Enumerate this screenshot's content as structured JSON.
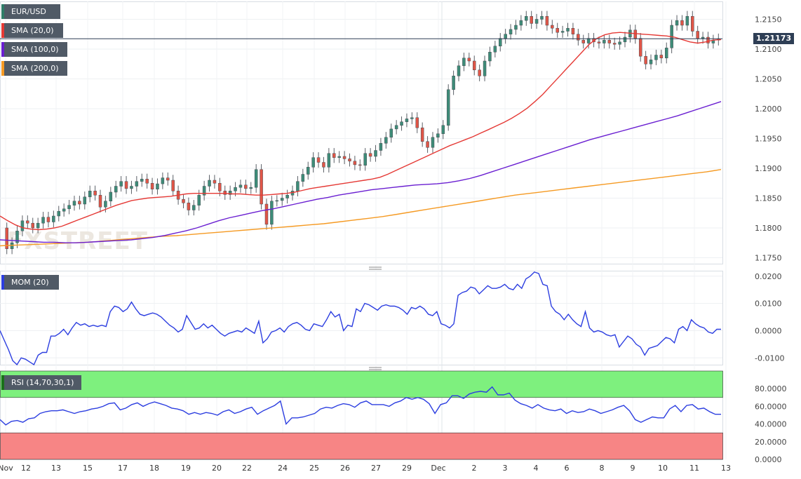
{
  "symbol": "EUR/USD",
  "price_label": "1.21173",
  "legend": {
    "main": [
      {
        "label": "EUR/USD",
        "color": "#2e7d68"
      },
      {
        "label": "SMA (20,0)",
        "color": "#e53935"
      },
      {
        "label": "SMA (100,0)",
        "color": "#6a1fd1"
      },
      {
        "label": "SMA (200,0)",
        "color": "#f59a23"
      }
    ],
    "mom": {
      "label": "MOM (20)",
      "color": "#2c3ee0"
    },
    "rsi": {
      "label": "RSI (14,70,30,1)",
      "color": "#1b6f1b"
    }
  },
  "watermark": "FXSTREET",
  "colors": {
    "up": "#3d8c78",
    "down": "#e05547",
    "sma20": "#e53935",
    "sma100": "#6a1fd1",
    "sma200": "#f59a23",
    "mom": "#2c3ee0",
    "rsi": "#2c3ee0",
    "rsi_overbought": "#7ef07e",
    "rsi_oversold": "#f78585"
  },
  "chart_data": [
    {
      "type": "candlestick",
      "title": "EUR/USD",
      "ylim": [
        1.174,
        1.218
      ],
      "y_ticks": [
        "1.2150",
        "1.2100",
        "1.2050",
        "1.2000",
        "1.1950",
        "1.1900",
        "1.1850",
        "1.1800",
        "1.1750"
      ],
      "x_ticks": [
        "Nov",
        "12",
        "13",
        "15",
        "17",
        "18",
        "19",
        "20",
        "22",
        "24",
        "25",
        "26",
        "27",
        "29",
        "Dec",
        "2",
        "3",
        "4",
        "6",
        "8",
        "9",
        "10",
        "11",
        "13"
      ],
      "current_price": 1.21173,
      "candles": {
        "open": [
          1.18,
          1.1765,
          1.1775,
          1.1795,
          1.1812,
          1.1808,
          1.18,
          1.1808,
          1.1818,
          1.181,
          1.182,
          1.1828,
          1.1832,
          1.1838,
          1.1845,
          1.184,
          1.1852,
          1.1862,
          1.1855,
          1.1835,
          1.1845,
          1.186,
          1.187,
          1.1878,
          1.1866,
          1.187,
          1.1878,
          1.1882,
          1.1875,
          1.1865,
          1.1874,
          1.1884,
          1.188,
          1.1862,
          1.1848,
          1.1842,
          1.183,
          1.1838,
          1.1855,
          1.187,
          1.188,
          1.1875,
          1.1862,
          1.1856,
          1.1862,
          1.1868,
          1.1872,
          1.1866,
          1.1868,
          1.1898,
          1.184,
          1.1806,
          1.1845,
          1.1846,
          1.185,
          1.1855,
          1.1862,
          1.1878,
          1.189,
          1.1902,
          1.1918,
          1.191,
          1.1902,
          1.1925,
          1.1918,
          1.192,
          1.1916,
          1.1912,
          1.1906,
          1.1905,
          1.1925,
          1.192,
          1.193,
          1.1942,
          1.1952,
          1.1966,
          1.1972,
          1.1978,
          1.1983,
          1.1985,
          1.1968,
          1.1945,
          1.1935,
          1.1952,
          1.1958,
          1.1972,
          1.2032,
          1.2055,
          1.2072,
          1.2085,
          1.208,
          1.2065,
          1.2055,
          1.208,
          1.2095,
          1.2105,
          1.2118,
          1.2125,
          1.2133,
          1.214,
          1.2148,
          1.2155,
          1.2143,
          1.215,
          1.2155,
          1.214,
          1.2135,
          1.2128,
          1.213,
          1.2135,
          1.2125,
          1.2115,
          1.211,
          1.2118,
          1.2112,
          1.211,
          1.2115,
          1.211,
          1.2108,
          1.2112,
          1.212,
          1.2132,
          1.2118,
          1.2088,
          1.2075,
          1.2082,
          1.209,
          1.2085,
          1.2102,
          1.214,
          1.2148,
          1.214,
          1.2155,
          1.213,
          1.2118,
          1.212,
          1.211,
          1.2115
        ],
        "close": [
          1.1765,
          1.1775,
          1.1795,
          1.1812,
          1.1808,
          1.18,
          1.1808,
          1.1818,
          1.181,
          1.182,
          1.1828,
          1.1832,
          1.1838,
          1.1845,
          1.184,
          1.1852,
          1.1862,
          1.1855,
          1.1835,
          1.1845,
          1.186,
          1.187,
          1.1878,
          1.1866,
          1.187,
          1.1878,
          1.1882,
          1.1875,
          1.1865,
          1.1874,
          1.1884,
          1.188,
          1.1862,
          1.1848,
          1.1842,
          1.183,
          1.1838,
          1.1855,
          1.187,
          1.188,
          1.1875,
          1.1862,
          1.1856,
          1.1862,
          1.1868,
          1.1872,
          1.1866,
          1.1868,
          1.1898,
          1.184,
          1.1806,
          1.1845,
          1.1846,
          1.185,
          1.1855,
          1.1862,
          1.1878,
          1.189,
          1.1902,
          1.1918,
          1.191,
          1.1902,
          1.1925,
          1.1918,
          1.192,
          1.1916,
          1.1912,
          1.1906,
          1.1905,
          1.1925,
          1.192,
          1.193,
          1.1942,
          1.1952,
          1.1966,
          1.1972,
          1.1978,
          1.1983,
          1.1985,
          1.1968,
          1.1945,
          1.1935,
          1.1952,
          1.1958,
          1.1972,
          1.2032,
          1.2055,
          1.2072,
          1.2085,
          1.208,
          1.2065,
          1.2055,
          1.208,
          1.2095,
          1.2105,
          1.2118,
          1.2125,
          1.2133,
          1.214,
          1.2148,
          1.2155,
          1.2143,
          1.215,
          1.2155,
          1.214,
          1.2135,
          1.2128,
          1.213,
          1.2135,
          1.2125,
          1.2115,
          1.211,
          1.2118,
          1.2112,
          1.211,
          1.2115,
          1.211,
          1.2108,
          1.2112,
          1.212,
          1.2132,
          1.2118,
          1.2088,
          1.2075,
          1.2082,
          1.209,
          1.2085,
          1.2102,
          1.214,
          1.2148,
          1.214,
          1.2155,
          1.213,
          1.2118,
          1.212,
          1.211,
          1.2115,
          1.2117
        ]
      },
      "sma20": [
        1.182,
        1.1812,
        1.1805,
        1.18,
        1.1798,
        1.1797,
        1.1798,
        1.18,
        1.1803,
        1.1808,
        1.1813,
        1.1818,
        1.1823,
        1.1828,
        1.1833,
        1.1838,
        1.1842,
        1.1846,
        1.1848,
        1.185,
        1.1851,
        1.1852,
        1.1853,
        1.1855,
        1.1857,
        1.1858,
        1.1858,
        1.1858,
        1.1858,
        1.1858,
        1.1857,
        1.1857,
        1.1856,
        1.1855,
        1.1855,
        1.1856,
        1.1857,
        1.1858,
        1.186,
        1.1863,
        1.1866,
        1.1868,
        1.187,
        1.1872,
        1.1874,
        1.1876,
        1.1878,
        1.188,
        1.1882,
        1.1885,
        1.189,
        1.1896,
        1.1902,
        1.1908,
        1.1914,
        1.192,
        1.1926,
        1.1932,
        1.1938,
        1.1943,
        1.1948,
        1.1953,
        1.1959,
        1.1965,
        1.1971,
        1.1977,
        1.1984,
        1.1992,
        1.2001,
        1.2012,
        1.2024,
        1.2038,
        1.2052,
        1.2066,
        1.208,
        1.2094,
        1.2108,
        1.2118,
        1.2124,
        1.2127,
        1.2128,
        1.2127,
        1.2126,
        1.2125,
        1.2124,
        1.2123,
        1.2122,
        1.212,
        1.2116,
        1.2112,
        1.211,
        1.2112,
        1.2115,
        1.2116
      ],
      "sma100": [
        1.178,
        1.1779,
        1.1778,
        1.1777,
        1.1776,
        1.1776,
        1.1775,
        1.1775,
        1.1776,
        1.1777,
        1.1778,
        1.1779,
        1.178,
        1.1782,
        1.1784,
        1.1787,
        1.1791,
        1.1795,
        1.18,
        1.1806,
        1.1812,
        1.1817,
        1.1821,
        1.1825,
        1.1829,
        1.1832,
        1.1836,
        1.184,
        1.1844,
        1.1848,
        1.1851,
        1.1855,
        1.1858,
        1.1861,
        1.1864,
        1.1866,
        1.1868,
        1.187,
        1.1872,
        1.1873,
        1.1874,
        1.1876,
        1.1879,
        1.1883,
        1.1888,
        1.1894,
        1.19,
        1.1906,
        1.1912,
        1.1918,
        1.1924,
        1.193,
        1.1936,
        1.1942,
        1.1948,
        1.1953,
        1.1958,
        1.1963,
        1.1968,
        1.1973,
        1.1978,
        1.1983,
        1.1988,
        1.1994,
        1.2,
        1.2006,
        1.2012
      ],
      "sma200": [
        1.177,
        1.1771,
        1.1772,
        1.1773,
        1.1774,
        1.1775,
        1.1776,
        1.1778,
        1.178,
        1.1782,
        1.1784,
        1.1786,
        1.1787,
        1.1789,
        1.1791,
        1.1793,
        1.1795,
        1.1797,
        1.1799,
        1.1801,
        1.1803,
        1.1805,
        1.1807,
        1.181,
        1.1813,
        1.1816,
        1.1819,
        1.1823,
        1.1827,
        1.1831,
        1.1835,
        1.1839,
        1.1843,
        1.1847,
        1.1851,
        1.1855,
        1.1858,
        1.1861,
        1.1864,
        1.1867,
        1.187,
        1.1873,
        1.1876,
        1.1879,
        1.1882,
        1.1885,
        1.1888,
        1.1891,
        1.1894,
        1.1898
      ]
    },
    {
      "type": "line",
      "title": "MOM (20)",
      "ylim": [
        -0.0125,
        0.022
      ],
      "y_ticks": [
        "0.0200",
        "0.0100",
        "0.0000",
        "-0.0100"
      ],
      "values": [
        0.0,
        -0.0035,
        -0.007,
        -0.011,
        -0.0125,
        -0.01,
        -0.0105,
        -0.0115,
        -0.0125,
        -0.009,
        -0.008,
        -0.008,
        -0.002,
        -0.002,
        -0.001,
        0.0005,
        -0.0015,
        0.001,
        0.003,
        0.002,
        0.0025,
        0.0015,
        0.002,
        0.0015,
        0.002,
        0.0015,
        0.007,
        0.009,
        0.0085,
        0.007,
        0.008,
        0.0105,
        0.008,
        0.006,
        0.0055,
        0.006,
        0.0065,
        0.006,
        0.005,
        0.0035,
        0.002,
        0.001,
        -0.0005,
        0.0005,
        0.0055,
        0.003,
        0.0005,
        0.001,
        0.0025,
        0.001,
        0.002,
        0.0005,
        -0.001,
        -0.002,
        -0.001,
        -0.0005,
        0.0,
        -0.0005,
        0.001,
        0.0,
        -0.001,
        0.0035,
        -0.0045,
        -0.003,
        -0.0005,
        0.0,
        0.001,
        -0.0005,
        0.0015,
        0.0025,
        0.003,
        0.002,
        0.0005,
        0.0,
        0.0025,
        0.002,
        0.0015,
        0.004,
        0.007,
        0.005,
        0.006,
        0.0,
        0.002,
        0.0015,
        0.008,
        0.007,
        0.01,
        0.0095,
        0.0085,
        0.0075,
        0.009,
        0.0095,
        0.009,
        0.009,
        0.0085,
        0.0075,
        0.006,
        0.0085,
        0.008,
        0.009,
        0.008,
        0.006,
        0.0055,
        0.007,
        0.0025,
        0.002,
        0.001,
        0.0025,
        0.013,
        0.014,
        0.0145,
        0.016,
        0.0155,
        0.0135,
        0.015,
        0.0165,
        0.0155,
        0.0155,
        0.016,
        0.017,
        0.0155,
        0.015,
        0.017,
        0.0155,
        0.019,
        0.02,
        0.0215,
        0.021,
        0.017,
        0.0165,
        0.009,
        0.007,
        0.006,
        0.004,
        0.006,
        0.004,
        0.0025,
        0.0015,
        0.007,
        0.001,
        -0.0005,
        0.0,
        -0.0005,
        -0.0015,
        -0.002,
        -0.0015,
        -0.006,
        -0.004,
        -0.002,
        -0.003,
        -0.005,
        -0.006,
        -0.009,
        -0.0065,
        -0.006,
        -0.0055,
        -0.004,
        -0.0025,
        -0.003,
        -0.0045,
        0.0005,
        0.0015,
        0.0,
        0.004,
        0.0025,
        0.0015,
        0.001,
        -0.0005,
        -0.001,
        0.0005,
        0.0005
      ],
      "zero_line": 0.0
    },
    {
      "type": "line",
      "title": "RSI (14,70,30,1)",
      "ylim": [
        0,
        100
      ],
      "y_ticks": [
        "80.0000",
        "60.0000",
        "40.0000",
        "20.0000",
        "0.0000"
      ],
      "overbought": 70,
      "oversold": 30,
      "values": [
        45,
        39,
        43,
        44,
        42,
        46,
        47,
        52,
        54,
        55,
        55,
        56,
        54,
        52,
        54,
        55,
        57,
        58,
        60,
        63,
        64,
        56,
        58,
        62,
        64,
        60,
        63,
        65,
        63,
        61,
        58,
        57,
        55,
        51,
        53,
        51,
        53,
        52,
        50,
        54,
        56,
        52,
        54,
        57,
        59,
        51,
        55,
        58,
        61,
        66,
        40,
        47,
        47,
        48,
        50,
        52,
        57,
        59,
        58,
        61,
        63,
        62,
        59,
        64,
        66,
        62,
        62,
        62,
        60,
        64,
        66,
        70,
        68,
        70,
        68,
        63,
        52,
        62,
        64,
        72,
        72,
        69,
        74,
        76,
        77,
        76,
        82,
        73,
        73,
        75,
        67,
        63,
        61,
        58,
        62,
        58,
        56,
        55,
        57,
        52,
        55,
        53,
        54,
        57,
        55,
        52,
        54,
        56,
        59,
        61,
        55,
        45,
        42,
        45,
        48,
        47,
        47,
        57,
        61,
        54,
        61,
        62,
        57,
        58,
        54,
        51,
        51
      ]
    }
  ]
}
